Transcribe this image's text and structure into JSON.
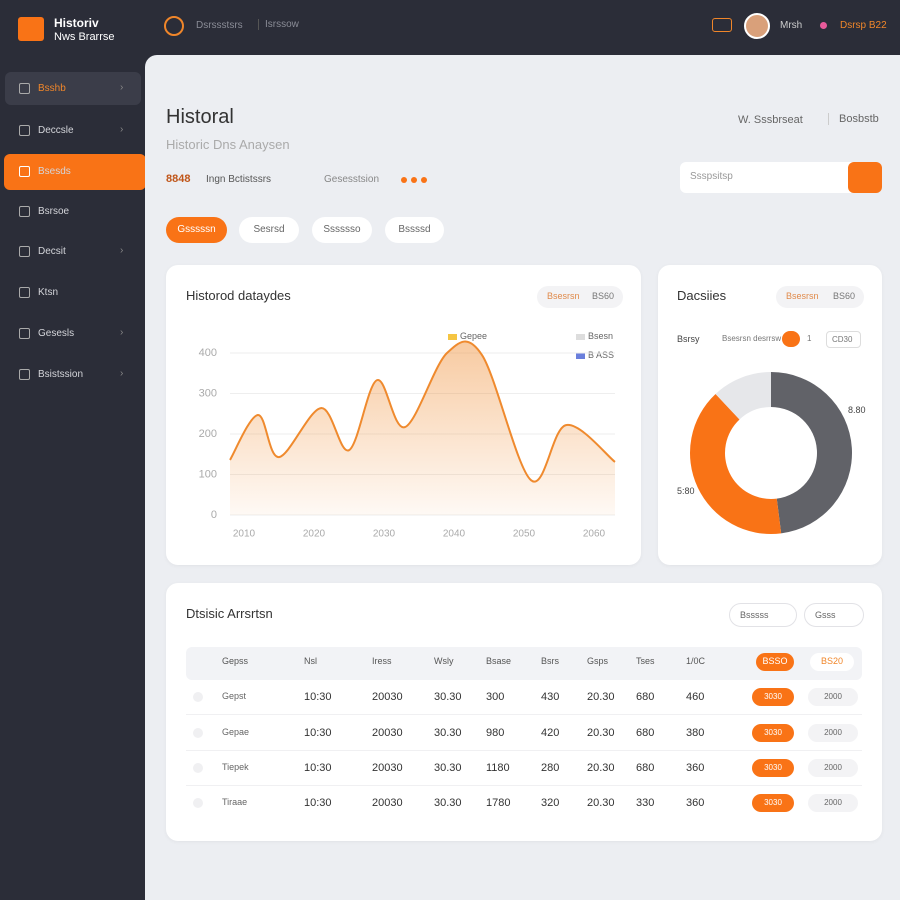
{
  "header": {
    "brand": "Historiv",
    "brand_sub": "Nws Brarrse",
    "nav": [
      "Dsrssstsrs",
      "Isrssow"
    ],
    "user": "Mrsh",
    "account": "Dsrsp B22"
  },
  "sidebar": {
    "items": [
      "Bsshb",
      "Deccsle",
      "Bsesds",
      "Bsrsoe",
      "Decsit",
      "Ktsn",
      "Gesesls",
      "Bsistssion"
    ]
  },
  "page": {
    "title": "Historal",
    "subtitle": "Historic Dns Anaysen",
    "meta": [
      "8848",
      "Ingn Bctistssrs",
      "Gesesstsion"
    ],
    "tabs": [
      "Gsssssn",
      "Sesrsd",
      "Sssssso",
      "Bssssd"
    ],
    "breadcrumb": [
      "W. Sssbrseat",
      "Bosbstb"
    ],
    "search_placeholder": "Ssspsitsp"
  },
  "line_card": {
    "title": "Historod dataydes",
    "filter": "Bsesrsn",
    "filter_value": "BS60",
    "legend": [
      "Gepee",
      "Bsesn",
      "B ASS"
    ]
  },
  "donut_card": {
    "title": "Dacsiies",
    "filter": "Bsesrsn",
    "filter_value": "BS60",
    "controls": [
      "Bsrsy",
      "Bsesrsn desrrsw",
      "1",
      "CD30"
    ],
    "annotations": [
      "8.80",
      "5:80"
    ]
  },
  "table": {
    "title": "Dtsisic Arrsrtsn",
    "filters": [
      "Bsssss",
      "Gsss"
    ],
    "header": [
      "Gepss",
      "Nsl",
      "Iress",
      "Wsly",
      "Bsase",
      "Bsrs",
      "Gsps",
      "Tses",
      "1/0C",
      "BSSO",
      "BS20"
    ],
    "rows": [
      [
        "Gepst",
        "10:30",
        "20030",
        "30.30",
        "300",
        "430",
        "20.30",
        "680",
        "460",
        "3030",
        "2000"
      ],
      [
        "Gepae",
        "10:30",
        "20030",
        "30.30",
        "980",
        "420",
        "20.30",
        "680",
        "380",
        "3030",
        "2000"
      ],
      [
        "Tiepek",
        "10:30",
        "20030",
        "30.30",
        "1180",
        "280",
        "20.30",
        "680",
        "360",
        "3030",
        "2000"
      ],
      [
        "Tiraae",
        "10:30",
        "20030",
        "30.30",
        "1780",
        "320",
        "20.30",
        "330",
        "360",
        "3030",
        "2000"
      ]
    ]
  },
  "chart_data": [
    {
      "type": "line",
      "x": [
        2008,
        2012,
        2015,
        2021,
        2025,
        2029,
        2033,
        2039,
        2044,
        2051,
        2056,
        2063
      ],
      "xlim": [
        2008,
        2063
      ],
      "xticks": [
        2010,
        2020,
        2030,
        2040,
        2050,
        2060
      ],
      "ylim": [
        0,
        400
      ],
      "yticks": [
        0,
        100,
        200,
        300,
        400
      ],
      "grid": true,
      "series": [
        {
          "color": "#ef8a2e",
          "values": [
            136,
            247,
            143,
            264,
            160,
            333,
            217,
            400,
            395,
            86,
            222,
            131
          ]
        }
      ]
    },
    {
      "type": "pie",
      "values": [
        48,
        40,
        12
      ],
      "colors": [
        "#616268",
        "#f97316",
        "#e6e7ea"
      ]
    }
  ]
}
